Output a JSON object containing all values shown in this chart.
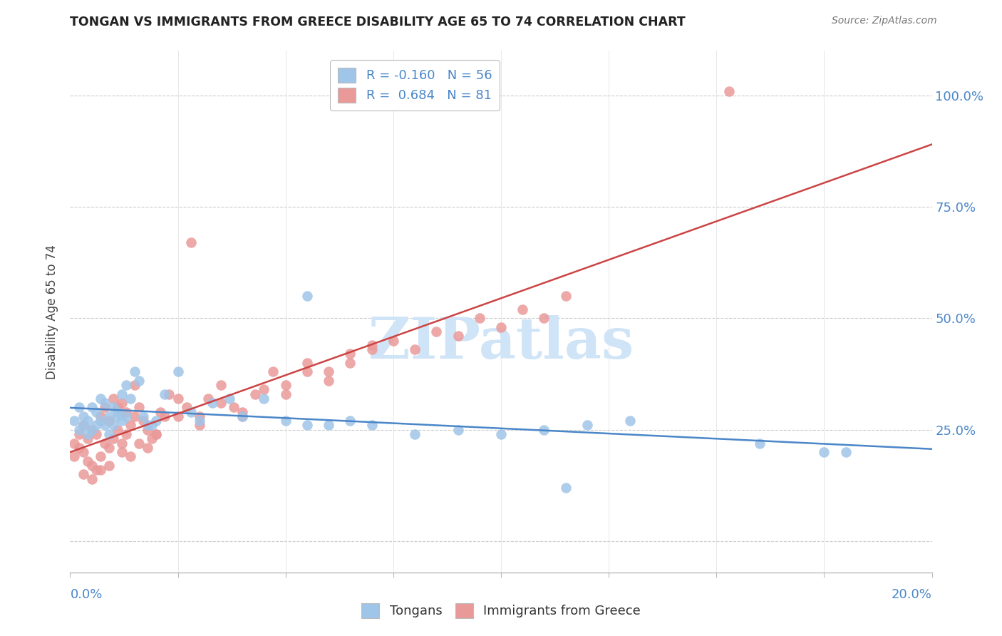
{
  "title": "TONGAN VS IMMIGRANTS FROM GREECE DISABILITY AGE 65 TO 74 CORRELATION CHART",
  "source": "Source: ZipAtlas.com",
  "ylabel": "Disability Age 65 to 74",
  "legend_label1": "Tongans",
  "legend_label2": "Immigrants from Greece",
  "R_blue": -0.16,
  "N_blue": 56,
  "R_pink": 0.684,
  "N_pink": 81,
  "color_blue": "#9fc5e8",
  "color_pink": "#ea9999",
  "color_blue_line": "#4a86c8",
  "color_pink_line": "#cc4444",
  "color_blue_text": "#4a86c8",
  "watermark_color": "#d0e4f7",
  "xmin": 0.0,
  "xmax": 0.2,
  "ymin": -0.07,
  "ymax": 1.1,
  "ytick_vals": [
    0.0,
    0.25,
    0.5,
    0.75,
    1.0
  ],
  "ytick_labels": [
    "",
    "25.0%",
    "50.0%",
    "75.0%",
    "100.0%"
  ],
  "blue_x": [
    0.001,
    0.002,
    0.002,
    0.003,
    0.003,
    0.004,
    0.004,
    0.005,
    0.005,
    0.006,
    0.006,
    0.007,
    0.007,
    0.008,
    0.008,
    0.009,
    0.009,
    0.01,
    0.01,
    0.011,
    0.011,
    0.012,
    0.012,
    0.013,
    0.013,
    0.014,
    0.015,
    0.016,
    0.017,
    0.018,
    0.019,
    0.02,
    0.022,
    0.025,
    0.028,
    0.03,
    0.033,
    0.037,
    0.04,
    0.045,
    0.05,
    0.055,
    0.06,
    0.065,
    0.07,
    0.08,
    0.09,
    0.1,
    0.11,
    0.12,
    0.13,
    0.055,
    0.175,
    0.18,
    0.115,
    0.16
  ],
  "blue_y": [
    0.27,
    0.25,
    0.3,
    0.26,
    0.28,
    0.24,
    0.27,
    0.25,
    0.3,
    0.26,
    0.29,
    0.27,
    0.32,
    0.26,
    0.31,
    0.28,
    0.24,
    0.26,
    0.3,
    0.29,
    0.28,
    0.33,
    0.27,
    0.35,
    0.28,
    0.32,
    0.38,
    0.36,
    0.28,
    0.26,
    0.26,
    0.27,
    0.33,
    0.38,
    0.29,
    0.27,
    0.31,
    0.32,
    0.28,
    0.32,
    0.27,
    0.26,
    0.26,
    0.27,
    0.26,
    0.24,
    0.25,
    0.24,
    0.25,
    0.26,
    0.27,
    0.55,
    0.2,
    0.2,
    0.12,
    0.22
  ],
  "pink_x": [
    0.001,
    0.001,
    0.002,
    0.002,
    0.003,
    0.003,
    0.004,
    0.004,
    0.005,
    0.005,
    0.006,
    0.006,
    0.007,
    0.007,
    0.008,
    0.008,
    0.009,
    0.009,
    0.01,
    0.01,
    0.011,
    0.011,
    0.012,
    0.012,
    0.013,
    0.013,
    0.014,
    0.015,
    0.015,
    0.016,
    0.017,
    0.018,
    0.019,
    0.02,
    0.021,
    0.022,
    0.023,
    0.025,
    0.027,
    0.03,
    0.032,
    0.035,
    0.038,
    0.04,
    0.043,
    0.047,
    0.05,
    0.055,
    0.06,
    0.065,
    0.07,
    0.075,
    0.08,
    0.085,
    0.09,
    0.095,
    0.1,
    0.105,
    0.11,
    0.115,
    0.003,
    0.005,
    0.007,
    0.009,
    0.012,
    0.014,
    0.016,
    0.018,
    0.02,
    0.025,
    0.03,
    0.035,
    0.04,
    0.045,
    0.05,
    0.055,
    0.06,
    0.065,
    0.153,
    0.028,
    0.07
  ],
  "pink_y": [
    0.22,
    0.19,
    0.21,
    0.24,
    0.2,
    0.26,
    0.18,
    0.23,
    0.17,
    0.25,
    0.16,
    0.24,
    0.19,
    0.28,
    0.22,
    0.3,
    0.21,
    0.27,
    0.23,
    0.32,
    0.25,
    0.3,
    0.22,
    0.31,
    0.24,
    0.29,
    0.26,
    0.28,
    0.35,
    0.3,
    0.27,
    0.25,
    0.23,
    0.24,
    0.29,
    0.28,
    0.33,
    0.32,
    0.3,
    0.28,
    0.32,
    0.35,
    0.3,
    0.28,
    0.33,
    0.38,
    0.35,
    0.4,
    0.38,
    0.42,
    0.44,
    0.45,
    0.43,
    0.47,
    0.46,
    0.5,
    0.48,
    0.52,
    0.5,
    0.55,
    0.15,
    0.14,
    0.16,
    0.17,
    0.2,
    0.19,
    0.22,
    0.21,
    0.24,
    0.28,
    0.26,
    0.31,
    0.29,
    0.34,
    0.33,
    0.38,
    0.36,
    0.4,
    1.01,
    0.67,
    0.43
  ]
}
